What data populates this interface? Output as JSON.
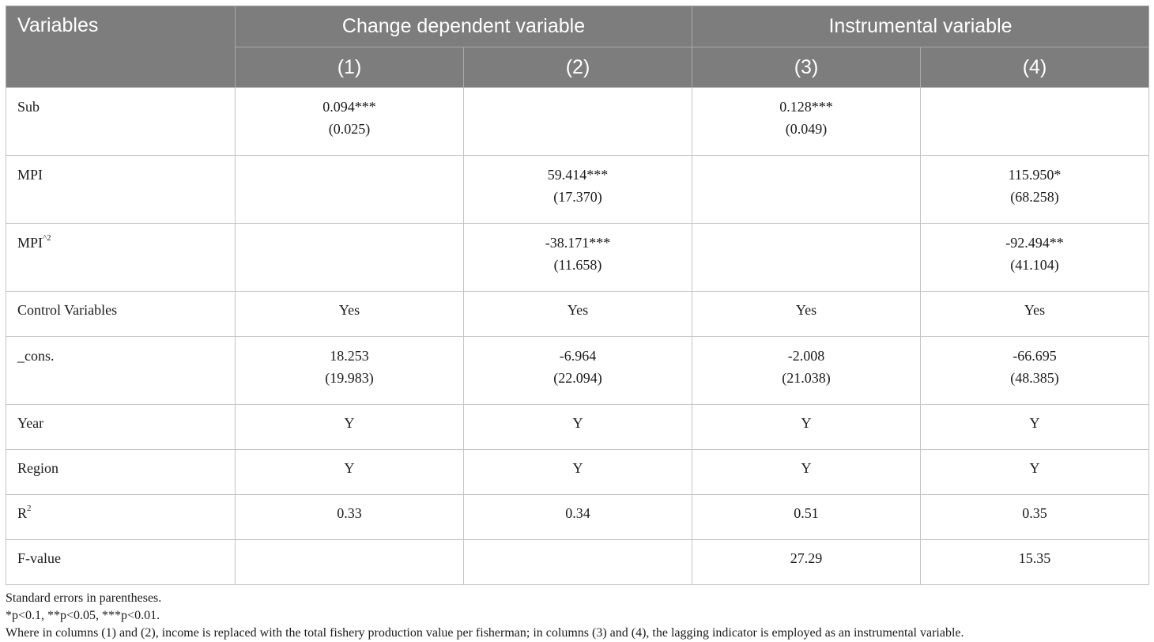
{
  "header": {
    "variables_label": "Variables",
    "group1": "Change dependent variable",
    "group2": "Instrumental variable",
    "cols": [
      "(1)",
      "(2)",
      "(3)",
      "(4)"
    ]
  },
  "rows": {
    "sub": {
      "label": "Sub",
      "c1": "0.094***",
      "c1se": "(0.025)",
      "c2": "",
      "c2se": "",
      "c3": "0.128***",
      "c3se": "(0.049)",
      "c4": "",
      "c4se": ""
    },
    "mpi": {
      "label": "MPI",
      "c1": "",
      "c1se": "",
      "c2": "59.414***",
      "c2se": "(17.370)",
      "c3": "",
      "c3se": "",
      "c4": "115.950*",
      "c4se": "(68.258)"
    },
    "mpi2": {
      "label": "MPI",
      "label_sup": "^2",
      "c1": "",
      "c1se": "",
      "c2": "-38.171***",
      "c2se": "(11.658)",
      "c3": "",
      "c3se": "",
      "c4": "-92.494**",
      "c4se": "(41.104)"
    },
    "controls": {
      "label": "Control Variables",
      "c1": "Yes",
      "c2": "Yes",
      "c3": "Yes",
      "c4": "Yes"
    },
    "cons": {
      "label": "_cons.",
      "c1": "18.253",
      "c1se": "(19.983)",
      "c2": "-6.964",
      "c2se": "(22.094)",
      "c3": "-2.008",
      "c3se": "(21.038)",
      "c4": "-66.695",
      "c4se": "(48.385)"
    },
    "year": {
      "label": "Year",
      "c1": "Y",
      "c2": "Y",
      "c3": "Y",
      "c4": "Y"
    },
    "region": {
      "label": "Region",
      "c1": "Y",
      "c2": "Y",
      "c3": "Y",
      "c4": "Y"
    },
    "r2": {
      "label": "R",
      "label_sup": "2",
      "c1": "0.33",
      "c2": "0.34",
      "c3": "0.51",
      "c4": "0.35"
    },
    "fvalue": {
      "label": "F-value",
      "c1": "",
      "c2": "",
      "c3": "27.29",
      "c4": "15.35"
    }
  },
  "notes": {
    "line1": "Standard errors in parentheses.",
    "line2": "*p<0.1, **p<0.05, ***p<0.01.",
    "line3": "Where in columns (1) and (2), income is replaced with the total fishery production value per fisherman; in columns (3) and (4), the lagging indicator is employed as an instrumental variable."
  }
}
